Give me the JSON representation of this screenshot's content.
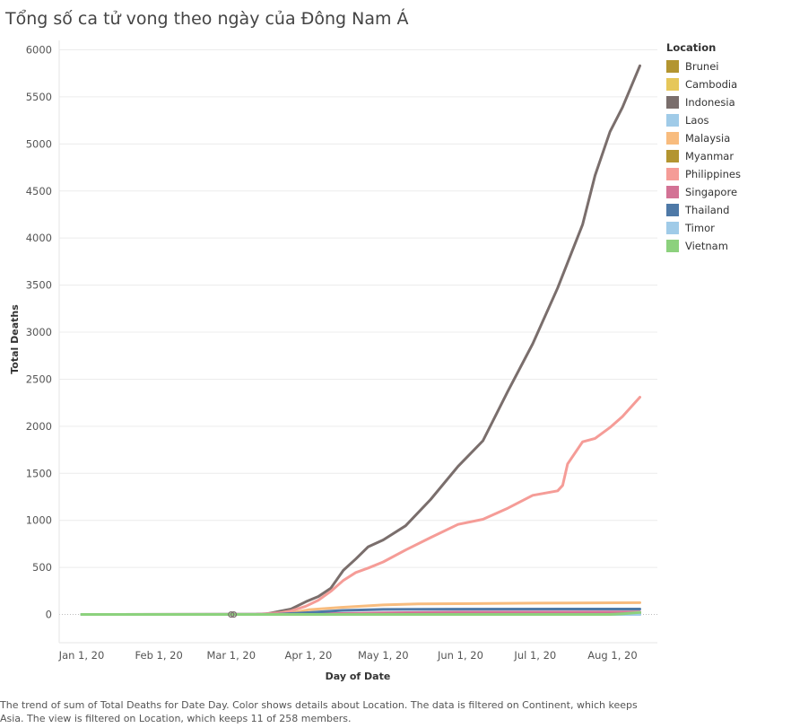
{
  "chart_data": {
    "type": "line",
    "title": "Tổng số ca tử vong theo ngày của Đông Nam Á",
    "xlabel": "Day of Date",
    "ylabel": "Total Deaths",
    "ylim": [
      -300,
      6100
    ],
    "xlim": [
      "2019-12-23",
      "2020-08-19"
    ],
    "y_ticks": [
      0,
      500,
      1000,
      1500,
      2000,
      2500,
      3000,
      3500,
      4000,
      4500,
      5000,
      5500,
      6000
    ],
    "x_ticks": [
      {
        "date": "2020-01-01",
        "label": "Jan 1, 20"
      },
      {
        "date": "2020-02-01",
        "label": "Feb 1, 20"
      },
      {
        "date": "2020-03-01",
        "label": "Mar 1, 20"
      },
      {
        "date": "2020-04-01",
        "label": "Apr 1, 20"
      },
      {
        "date": "2020-05-01",
        "label": "May 1, 20"
      },
      {
        "date": "2020-06-01",
        "label": "Jun 1, 20"
      },
      {
        "date": "2020-07-01",
        "label": "Jul 1, 20"
      },
      {
        "date": "2020-08-01",
        "label": "Aug 1, 20"
      }
    ],
    "legend_title": "Location",
    "legend_position": "right",
    "grid": true,
    "series": [
      {
        "name": "Brunei",
        "color": "#b39530",
        "points": [
          [
            "2020-01-01",
            0
          ],
          [
            "2020-03-14",
            0
          ],
          [
            "2020-04-01",
            1
          ],
          [
            "2020-04-15",
            1
          ],
          [
            "2020-05-01",
            2
          ],
          [
            "2020-08-12",
            3
          ]
        ]
      },
      {
        "name": "Cambodia",
        "color": "#e6c75a",
        "points": [
          [
            "2020-01-01",
            0
          ],
          [
            "2020-08-12",
            0
          ]
        ]
      },
      {
        "name": "Indonesia",
        "color": "#7a6e6c",
        "points": [
          [
            "2020-03-01",
            0
          ],
          [
            "2020-03-11",
            1
          ],
          [
            "2020-03-15",
            5
          ],
          [
            "2020-03-20",
            32
          ],
          [
            "2020-03-25",
            58
          ],
          [
            "2020-03-31",
            136
          ],
          [
            "2020-04-05",
            191
          ],
          [
            "2020-04-10",
            280
          ],
          [
            "2020-04-15",
            469
          ],
          [
            "2020-04-20",
            590
          ],
          [
            "2020-04-25",
            720
          ],
          [
            "2020-05-01",
            792
          ],
          [
            "2020-05-10",
            943
          ],
          [
            "2020-05-20",
            1221
          ],
          [
            "2020-05-31",
            1573
          ],
          [
            "2020-06-10",
            1846
          ],
          [
            "2020-06-20",
            2373
          ],
          [
            "2020-06-30",
            2876
          ],
          [
            "2020-07-10",
            3469
          ],
          [
            "2020-07-20",
            4143
          ],
          [
            "2020-07-25",
            4665
          ],
          [
            "2020-07-31",
            5130
          ],
          [
            "2020-08-05",
            5388
          ],
          [
            "2020-08-12",
            5830
          ]
        ]
      },
      {
        "name": "Laos",
        "color": "#a0cbe8",
        "points": [
          [
            "2020-01-01",
            0
          ],
          [
            "2020-08-12",
            0
          ]
        ]
      },
      {
        "name": "Malaysia",
        "color": "#f8bc7e",
        "points": [
          [
            "2020-01-01",
            0
          ],
          [
            "2020-03-17",
            0
          ],
          [
            "2020-03-25",
            16
          ],
          [
            "2020-04-01",
            50
          ],
          [
            "2020-04-15",
            77
          ],
          [
            "2020-05-01",
            102
          ],
          [
            "2020-05-15",
            112
          ],
          [
            "2020-06-01",
            115
          ],
          [
            "2020-07-01",
            121
          ],
          [
            "2020-08-12",
            125
          ]
        ]
      },
      {
        "name": "Myanmar",
        "color": "#b39530",
        "points": [
          [
            "2020-01-01",
            0
          ],
          [
            "2020-03-31",
            1
          ],
          [
            "2020-04-15",
            5
          ],
          [
            "2020-05-01",
            6
          ],
          [
            "2020-08-12",
            6
          ]
        ]
      },
      {
        "name": "Philippines",
        "color": "#f59c97",
        "points": [
          [
            "2020-03-01",
            0
          ],
          [
            "2020-03-11",
            1
          ],
          [
            "2020-03-20",
            17
          ],
          [
            "2020-03-25",
            38
          ],
          [
            "2020-03-31",
            88
          ],
          [
            "2020-04-05",
            152
          ],
          [
            "2020-04-10",
            247
          ],
          [
            "2020-04-15",
            362
          ],
          [
            "2020-04-20",
            446
          ],
          [
            "2020-04-25",
            494
          ],
          [
            "2020-05-01",
            558
          ],
          [
            "2020-05-10",
            685
          ],
          [
            "2020-05-20",
            817
          ],
          [
            "2020-05-31",
            957
          ],
          [
            "2020-06-10",
            1011
          ],
          [
            "2020-06-20",
            1130
          ],
          [
            "2020-06-30",
            1266
          ],
          [
            "2020-07-10",
            1314
          ],
          [
            "2020-07-12",
            1372
          ],
          [
            "2020-07-14",
            1600
          ],
          [
            "2020-07-20",
            1835
          ],
          [
            "2020-07-25",
            1871
          ],
          [
            "2020-07-31",
            1987
          ],
          [
            "2020-08-05",
            2104
          ],
          [
            "2020-08-12",
            2309
          ]
        ]
      },
      {
        "name": "Singapore",
        "color": "#d37295",
        "points": [
          [
            "2020-01-01",
            0
          ],
          [
            "2020-03-21",
            2
          ],
          [
            "2020-04-15",
            10
          ],
          [
            "2020-05-01",
            18
          ],
          [
            "2020-06-01",
            24
          ],
          [
            "2020-08-12",
            27
          ]
        ]
      },
      {
        "name": "Thailand",
        "color": "#4e79a7",
        "points": [
          [
            "2020-01-01",
            0
          ],
          [
            "2020-03-01",
            1
          ],
          [
            "2020-03-20",
            2
          ],
          [
            "2020-03-31",
            19
          ],
          [
            "2020-04-15",
            43
          ],
          [
            "2020-05-01",
            54
          ],
          [
            "2020-06-01",
            57
          ],
          [
            "2020-08-12",
            58
          ]
        ]
      },
      {
        "name": "Timor",
        "color": "#a0cbe8",
        "points": [
          [
            "2020-01-01",
            0
          ],
          [
            "2020-08-12",
            0
          ]
        ]
      },
      {
        "name": "Vietnam",
        "color": "#8cd17d",
        "points": [
          [
            "2020-01-01",
            0
          ],
          [
            "2020-07-31",
            0
          ],
          [
            "2020-08-05",
            8
          ],
          [
            "2020-08-12",
            21
          ]
        ]
      }
    ],
    "zero_markers": [
      [
        "2020-03-01",
        0
      ],
      [
        "2020-03-02",
        0
      ]
    ]
  },
  "caption": "The trend of sum of Total Deaths for Date Day.  Color shows details about Location. The data is filtered on Continent, which keeps Asia. The view is filtered on Location, which keeps 11 of 258 members."
}
